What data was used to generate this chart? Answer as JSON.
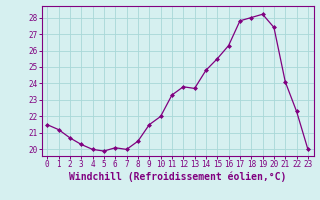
{
  "x": [
    0,
    1,
    2,
    3,
    4,
    5,
    6,
    7,
    8,
    9,
    10,
    11,
    12,
    13,
    14,
    15,
    16,
    17,
    18,
    19,
    20,
    21,
    22,
    23
  ],
  "y": [
    21.5,
    21.2,
    20.7,
    20.3,
    20.0,
    19.9,
    20.1,
    20.0,
    20.5,
    21.5,
    22.0,
    23.3,
    23.8,
    23.7,
    24.8,
    25.5,
    26.3,
    27.8,
    28.0,
    28.2,
    27.4,
    24.1,
    22.3,
    20.0
  ],
  "line_color": "#800080",
  "marker": "D",
  "marker_size": 2,
  "bg_color": "#d6f0f0",
  "grid_color": "#a8d8d8",
  "ylabel_ticks": [
    20,
    21,
    22,
    23,
    24,
    25,
    26,
    27,
    28
  ],
  "ylim": [
    19.6,
    28.7
  ],
  "xlim": [
    -0.5,
    23.5
  ],
  "xlabel": "Windchill (Refroidissement éolien,°C)",
  "tick_color": "#800080",
  "tick_fontsize": 5.5,
  "xlabel_fontsize": 7.0
}
